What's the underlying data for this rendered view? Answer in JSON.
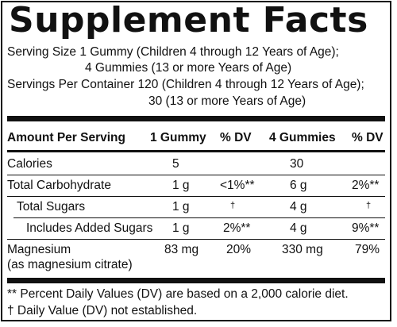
{
  "title": "Supplement Facts",
  "serving": {
    "size_line1": "Serving Size 1 Gummy (Children 4 through 12 Years of Age);",
    "size_line2": "4 Gummies (13 or more Years of Age)",
    "per_container_line1": "Servings Per Container 120 (Children 4 through 12 Years of Age);",
    "per_container_line2": "30 (13 or more Years of Age)"
  },
  "table": {
    "headers": {
      "amount": "Amount Per Serving",
      "one_gummy": "1 Gummy",
      "dv1": "% DV",
      "four_gummies": "4 Gummies",
      "dv2": "% DV"
    },
    "rows": [
      {
        "name": "Calories",
        "amount1": "5",
        "dv1": "",
        "amount4": "30",
        "dv4": ""
      },
      {
        "name": "Total Carbohydrate",
        "amount1": "1 g",
        "dv1": "<1%**",
        "amount4": "6 g",
        "dv4": "2%**"
      },
      {
        "name": "Total Sugars",
        "amount1": "1 g",
        "dv1": "†",
        "amount4": "4 g",
        "dv4": "†"
      },
      {
        "name": "Includes Added Sugars",
        "amount1": "1 g",
        "dv1": "2%**",
        "amount4": "4 g",
        "dv4": "9%**"
      },
      {
        "name": "Magnesium",
        "name2": "(as magnesium citrate)",
        "amount1": "83 mg",
        "dv1": "20%",
        "amount4": "330 mg",
        "dv4": "79%"
      }
    ]
  },
  "footnotes": {
    "dv_note": "** Percent Daily Values (DV) are based on a 2,000 calorie diet.",
    "dagger_note": "† Daily Value (DV) not established."
  }
}
